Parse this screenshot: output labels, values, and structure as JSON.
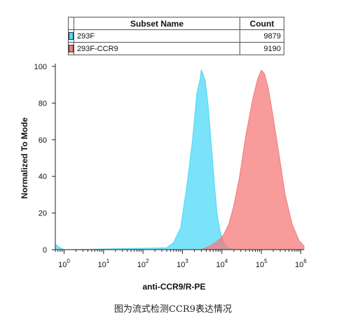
{
  "chart_data": {
    "type": "area",
    "xlabel": "anti-CCR9/R-PE",
    "ylabel": "Normalized To Mode",
    "x_scale": "log",
    "xlim": [
      0.6,
      1200000
    ],
    "ylim": [
      0,
      100
    ],
    "x_ticks": [
      1,
      10,
      100,
      1000,
      10000,
      100000,
      1000000
    ],
    "x_tick_exponents": [
      "0",
      "1",
      "2",
      "3",
      "4",
      "5",
      "6"
    ],
    "y_ticks": [
      0,
      20,
      40,
      60,
      80,
      100
    ],
    "legend_headers": {
      "name": "Subset Name",
      "count": "Count"
    },
    "series": [
      {
        "name": "293F",
        "count": "9879",
        "color": "#4dd8f7",
        "points": [
          [
            0.6,
            3
          ],
          [
            0.8,
            1
          ],
          [
            1.0,
            0
          ],
          [
            400,
            1
          ],
          [
            600,
            4
          ],
          [
            900,
            12
          ],
          [
            1300,
            35
          ],
          [
            1800,
            60
          ],
          [
            2300,
            85
          ],
          [
            2800,
            93
          ],
          [
            3000,
            98
          ],
          [
            3300,
            96
          ],
          [
            3800,
            92
          ],
          [
            4500,
            78
          ],
          [
            5500,
            55
          ],
          [
            6500,
            35
          ],
          [
            7500,
            20
          ],
          [
            9000,
            10
          ],
          [
            11000,
            4
          ],
          [
            14000,
            1
          ],
          [
            20000,
            0
          ],
          [
            1200000,
            0
          ]
        ]
      },
      {
        "name": "293F-CCR9",
        "count": "9190",
        "color": "#f47a7a",
        "points": [
          [
            0.6,
            0
          ],
          [
            3000,
            0
          ],
          [
            5000,
            2
          ],
          [
            7000,
            4
          ],
          [
            9000,
            6
          ],
          [
            11000,
            8
          ],
          [
            15000,
            14
          ],
          [
            20000,
            24
          ],
          [
            28000,
            40
          ],
          [
            40000,
            62
          ],
          [
            60000,
            82
          ],
          [
            80000,
            93
          ],
          [
            100000,
            98
          ],
          [
            120000,
            96
          ],
          [
            150000,
            88
          ],
          [
            200000,
            72
          ],
          [
            280000,
            52
          ],
          [
            400000,
            30
          ],
          [
            600000,
            14
          ],
          [
            900000,
            5
          ],
          [
            1200000,
            2
          ]
        ]
      }
    ]
  },
  "caption": "图为流式检测CCR9表达情况"
}
